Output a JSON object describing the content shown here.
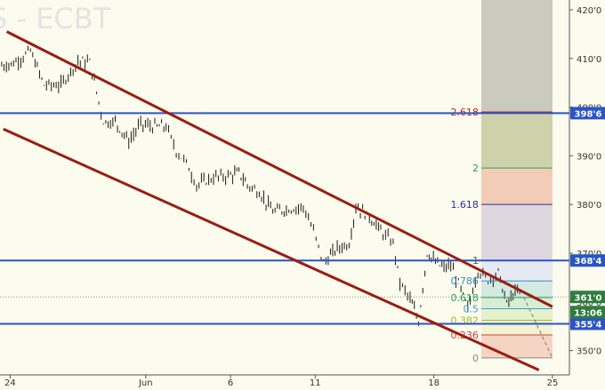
{
  "chart_data": {
    "type": "candlestick",
    "watermark": "S - ECBT",
    "ylim": [
      345,
      422
    ],
    "y_ticks": [
      {
        "value": 350,
        "label": "350'0"
      },
      {
        "value": 360,
        "label": "360'0"
      },
      {
        "value": 370,
        "label": "370'0"
      },
      {
        "value": 380,
        "label": "380'0"
      },
      {
        "value": 390,
        "label": "390'0"
      },
      {
        "value": 400,
        "label": "400'0"
      },
      {
        "value": 410,
        "label": "410'0"
      },
      {
        "value": 420,
        "label": "420'0"
      }
    ],
    "x_ticks": [
      {
        "day": 24,
        "label": "24"
      },
      {
        "day": 32,
        "label": "Jun"
      },
      {
        "day": 37,
        "label": "6"
      },
      {
        "day": 42,
        "label": "11"
      },
      {
        "day": 49,
        "label": "18"
      },
      {
        "day": 56,
        "label": "25"
      }
    ],
    "xlim": [
      23.4,
      57.0
    ],
    "close_path": [
      [
        23.5,
        408.5
      ],
      [
        24.2,
        409.0
      ],
      [
        25.2,
        411.5
      ],
      [
        26.0,
        404.5
      ],
      [
        27.0,
        404.5
      ],
      [
        28.0,
        409.5
      ],
      [
        28.7,
        409.2
      ],
      [
        29.5,
        397.0
      ],
      [
        30.2,
        397.0
      ],
      [
        31.0,
        393.0
      ],
      [
        31.7,
        396.5
      ],
      [
        32.4,
        396.0
      ],
      [
        33.2,
        396.0
      ],
      [
        33.8,
        391.0
      ],
      [
        34.4,
        388.5
      ],
      [
        35.0,
        384.0
      ],
      [
        36.0,
        385.5
      ],
      [
        37.0,
        386.0
      ],
      [
        37.5,
        386.5
      ],
      [
        38.0,
        384.0
      ],
      [
        38.7,
        382.5
      ],
      [
        39.5,
        378.5
      ],
      [
        40.3,
        379.0
      ],
      [
        41.3,
        379.5
      ],
      [
        41.9,
        374.5
      ],
      [
        42.5,
        368.0
      ],
      [
        43.3,
        371.0
      ],
      [
        44.0,
        372.0
      ],
      [
        44.4,
        379.5
      ],
      [
        45.2,
        377.5
      ],
      [
        46.0,
        374.0
      ],
      [
        46.6,
        372.0
      ],
      [
        47.0,
        364.0
      ],
      [
        47.6,
        360.5
      ],
      [
        48.1,
        356.0
      ],
      [
        48.6,
        370.0
      ],
      [
        49.1,
        368.0
      ],
      [
        49.6,
        367.0
      ],
      [
        50.0,
        367.5
      ],
      [
        50.6,
        362.5
      ],
      [
        51.0,
        358.5
      ],
      [
        51.6,
        366.5
      ],
      [
        52.2,
        364.5
      ],
      [
        52.8,
        366.0
      ],
      [
        53.3,
        359.5
      ],
      [
        53.8,
        362.0
      ],
      [
        54.2,
        361.5
      ]
    ],
    "channel_lines": [
      {
        "from": [
          23.8,
          415.5
        ],
        "to": [
          56.0,
          359.0
        ]
      },
      {
        "from": [
          23.6,
          395.5
        ],
        "to": [
          55.2,
          346.0
        ]
      }
    ],
    "horizontal_levels": [
      {
        "value": 398.75,
        "label": "398'6"
      },
      {
        "value": 368.5,
        "label": "368'4"
      },
      {
        "value": 355.5,
        "label": "355'4"
      }
    ],
    "dashed_projection": {
      "from": [
        54.3,
        361.0
      ],
      "to": [
        56.0,
        348.5
      ]
    },
    "fibonacci": {
      "x_range": [
        51.8,
        56.0
      ],
      "levels": [
        {
          "ratio": 0,
          "label": "0",
          "price": 348.5,
          "color": "#888888"
        },
        {
          "ratio": 0.236,
          "label": "0.236",
          "price": 353.2,
          "color": "#d04040"
        },
        {
          "ratio": 0.382,
          "label": "0.382",
          "price": 356.2,
          "color": "#a3b820"
        },
        {
          "ratio": 0.5,
          "label": "0.5",
          "price": 358.6,
          "color": "#3aa2d0"
        },
        {
          "ratio": 0.618,
          "label": "0.618",
          "price": 360.9,
          "color": "#26a050"
        },
        {
          "ratio": 0.786,
          "label": "0.786",
          "price": 364.3,
          "color": "#3a8fc0"
        },
        {
          "ratio": 1,
          "label": "1",
          "price": 368.5,
          "color": "#555555"
        },
        {
          "ratio": 1.618,
          "label": "1.618",
          "price": 380.0,
          "color": "#303090"
        },
        {
          "ratio": 2,
          "label": "2",
          "price": 387.5,
          "color": "#30a050"
        },
        {
          "ratio": 2.618,
          "label": "2.618",
          "price": 399.0,
          "color": "#c02020"
        }
      ],
      "bands": [
        {
          "from": 348.5,
          "to": 353.2,
          "color": "#f5d2c0"
        },
        {
          "from": 353.2,
          "to": 356.2,
          "color": "#f1f3cf"
        },
        {
          "from": 356.2,
          "to": 358.6,
          "color": "#e3f0c8"
        },
        {
          "from": 358.6,
          "to": 360.9,
          "color": "#d6ecd4"
        },
        {
          "from": 360.9,
          "to": 364.3,
          "color": "#d1e9e0"
        },
        {
          "from": 364.3,
          "to": 368.5,
          "color": "#e4e8f0"
        },
        {
          "from": 368.5,
          "to": 380.0,
          "color": "#ddd5dd"
        },
        {
          "from": 380.0,
          "to": 387.5,
          "color": "#f2c9b4"
        },
        {
          "from": 387.5,
          "to": 399.0,
          "color": "#cbd0a6"
        },
        {
          "from": 399.0,
          "to": 422.0,
          "color": "#c7c8ba"
        }
      ]
    },
    "current_price": {
      "label": "361'0",
      "value": 361.0
    },
    "countdown": "13:06",
    "colors": {
      "background": "#fbfbee",
      "channel": "#9b1c12",
      "horizontal": "#2b55c4",
      "price_badge": "#2e7d3e",
      "level_badge": "#2b55c4"
    }
  }
}
